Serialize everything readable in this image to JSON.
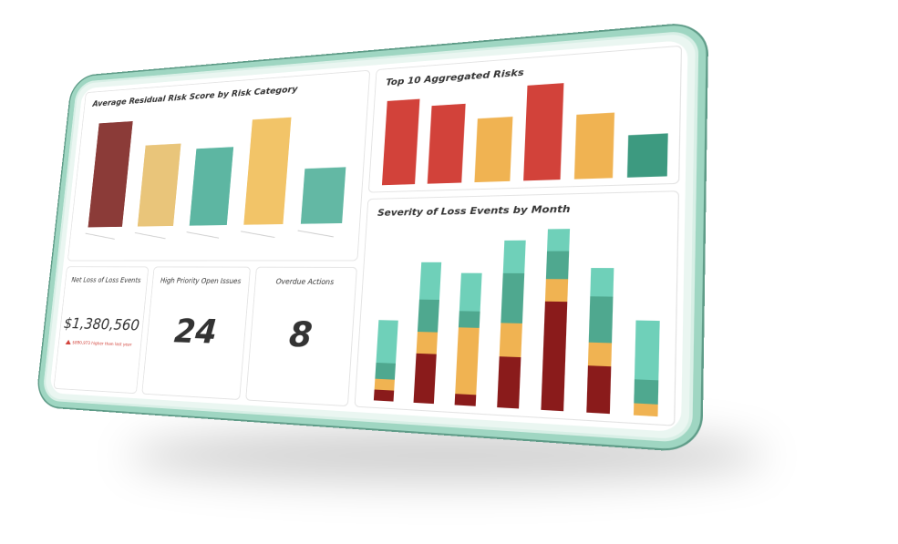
{
  "chart_data": [
    {
      "type": "bar",
      "title": "Average Residual Risk Score by Risk Category",
      "values": [
        125,
        95,
        88,
        118,
        60
      ],
      "colors": [
        "#8b3b38",
        "#e9c57a",
        "#5db6a2",
        "#f2c468",
        "#63b8a4"
      ]
    },
    {
      "type": "bar",
      "title": "Top 10 Aggregated Risks",
      "values": [
        110,
        100,
        80,
        118,
        78,
        50
      ],
      "colors": [
        "#d2423a",
        "#d2423a",
        "#f0b352",
        "#d2423a",
        "#f0b352",
        "#3d9a80"
      ]
    },
    {
      "type": "stacked-bar",
      "title": "Severity of Loss Events by Month",
      "series": [
        {
          "color": "#8a1b1b",
          "values": [
            10,
            45,
            10,
            45,
            95,
            40,
            0
          ]
        },
        {
          "color": "#f0b352",
          "values": [
            10,
            20,
            60,
            30,
            20,
            20,
            10
          ]
        },
        {
          "color": "#4fa88f",
          "values": [
            15,
            30,
            15,
            45,
            25,
            40,
            20
          ]
        },
        {
          "color": "#6fd0b9",
          "values": [
            40,
            35,
            35,
            30,
            20,
            25,
            50
          ]
        }
      ]
    }
  ],
  "kpis": [
    {
      "title": "Net Loss of Loss Events",
      "value": "$1,380,560",
      "note": "$880,973 higher than last year"
    },
    {
      "title": "High Priority Open Issues",
      "value": "24"
    },
    {
      "title": "Overdue Actions",
      "value": "8"
    }
  ]
}
